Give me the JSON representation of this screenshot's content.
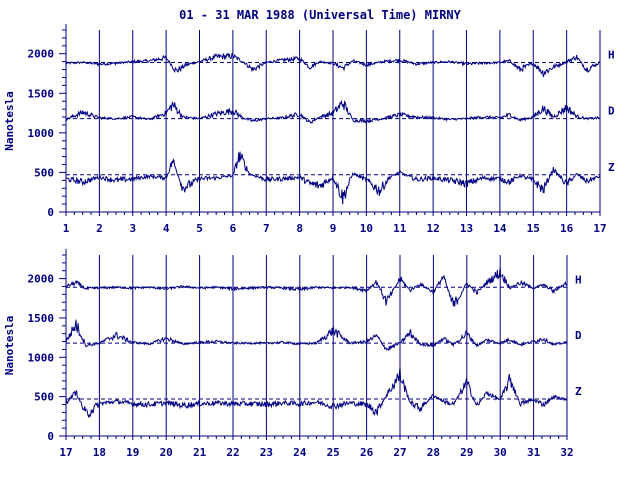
{
  "title": "01 - 31 MAR 1988 (Universal Time) MIRNY",
  "colors": {
    "ink": "#000080",
    "background": "#ffffff"
  },
  "chart_data": [
    {
      "type": "line",
      "panel": "top",
      "ylabel": "Nanotesla",
      "ylim": [
        0,
        2300
      ],
      "yticks": [
        0,
        500,
        1000,
        1500,
        2000
      ],
      "ytick_labels": [
        "0",
        "500",
        "1000",
        "1500",
        "2000"
      ],
      "xlim": [
        1,
        17
      ],
      "xticks": [
        1,
        2,
        3,
        4,
        5,
        6,
        7,
        8,
        9,
        10,
        11,
        12,
        13,
        14,
        15,
        16,
        17
      ],
      "xtick_labels": [
        "1",
        "2",
        "3",
        "4",
        "5",
        "6",
        "7",
        "8",
        "9",
        "10",
        "11",
        "12",
        "13",
        "14",
        "15",
        "16",
        "17"
      ],
      "grid": "vertical lines at each day",
      "series": [
        {
          "name": "H",
          "baseline": 1890,
          "x": [
            1,
            1.5,
            2,
            2.5,
            3,
            3.5,
            4,
            4.3,
            4.6,
            5,
            5.5,
            6,
            6.3,
            6.6,
            7,
            7.5,
            8,
            8.3,
            8.6,
            9,
            9.3,
            9.6,
            10,
            10.5,
            11,
            11.5,
            12,
            12.5,
            13,
            13.5,
            14,
            14.3,
            14.6,
            15,
            15.3,
            15.6,
            16,
            16.3,
            16.6,
            17
          ],
          "values": [
            1880,
            1890,
            1870,
            1880,
            1900,
            1910,
            1950,
            1780,
            1860,
            1900,
            1960,
            1970,
            1900,
            1800,
            1890,
            1920,
            1940,
            1830,
            1900,
            1880,
            1820,
            1910,
            1860,
            1900,
            1920,
            1870,
            1890,
            1900,
            1870,
            1880,
            1890,
            1910,
            1800,
            1880,
            1760,
            1830,
            1900,
            1960,
            1800,
            1890
          ]
        },
        {
          "name": "D",
          "baseline": 1180,
          "x": [
            1,
            1.5,
            2,
            2.5,
            3,
            3.5,
            4,
            4.2,
            4.5,
            5,
            5.5,
            6,
            6.3,
            6.6,
            7,
            7.5,
            8,
            8.3,
            8.6,
            9,
            9.3,
            9.6,
            10,
            10.5,
            11,
            11.5,
            12,
            12.5,
            13,
            13.5,
            14,
            14.3,
            14.6,
            15,
            15.3,
            15.6,
            16,
            16.3,
            16.6,
            17
          ],
          "values": [
            1170,
            1260,
            1190,
            1180,
            1200,
            1170,
            1250,
            1360,
            1200,
            1180,
            1240,
            1280,
            1190,
            1150,
            1180,
            1190,
            1240,
            1130,
            1200,
            1250,
            1380,
            1160,
            1150,
            1180,
            1230,
            1200,
            1190,
            1170,
            1180,
            1200,
            1190,
            1230,
            1160,
            1200,
            1310,
            1200,
            1320,
            1210,
            1180,
            1190
          ]
        },
        {
          "name": "Z",
          "baseline": 470,
          "x": [
            1,
            1.5,
            2,
            2.5,
            3,
            3.5,
            4,
            4.2,
            4.5,
            5,
            5.5,
            6,
            6.2,
            6.5,
            7,
            7.5,
            8,
            8.3,
            8.6,
            9,
            9.3,
            9.6,
            10,
            10.4,
            10.7,
            11,
            11.5,
            12,
            12.5,
            13,
            13.5,
            14,
            14.3,
            14.6,
            15,
            15.3,
            15.6,
            16,
            16.3,
            16.6,
            17
          ],
          "values": [
            420,
            380,
            440,
            400,
            420,
            450,
            430,
            650,
            300,
            420,
            430,
            460,
            720,
            480,
            410,
            420,
            440,
            360,
            330,
            440,
            180,
            490,
            400,
            270,
            440,
            500,
            410,
            430,
            400,
            360,
            430,
            420,
            380,
            460,
            400,
            280,
            540,
            350,
            480,
            390,
            450
          ]
        }
      ],
      "reference_lines": [
        1890,
        1180,
        470
      ]
    },
    {
      "type": "line",
      "panel": "bottom",
      "ylabel": "Nanotesla",
      "ylim": [
        0,
        2300
      ],
      "yticks": [
        0,
        500,
        1000,
        1500,
        2000
      ],
      "ytick_labels": [
        "0",
        "500",
        "1000",
        "1500",
        "2000"
      ],
      "xlim": [
        17,
        32
      ],
      "xticks": [
        17,
        18,
        19,
        20,
        21,
        22,
        23,
        24,
        25,
        26,
        27,
        28,
        29,
        30,
        31,
        32
      ],
      "xtick_labels": [
        "17",
        "18",
        "19",
        "20",
        "21",
        "22",
        "23",
        "24",
        "25",
        "26",
        "27",
        "28",
        "29",
        "30",
        "31",
        "32"
      ],
      "grid": "vertical lines at each day",
      "series": [
        {
          "name": "H",
          "baseline": 1890,
          "x": [
            17,
            17.3,
            17.6,
            18,
            18.5,
            19,
            19.5,
            20,
            20.5,
            21,
            21.5,
            22,
            22.5,
            23,
            23.5,
            24,
            24.5,
            25,
            25.5,
            26,
            26.3,
            26.6,
            27,
            27.3,
            27.6,
            28,
            28.3,
            28.6,
            29,
            29.3,
            29.6,
            30,
            30.3,
            30.6,
            31,
            31.3,
            31.6,
            32
          ],
          "values": [
            1900,
            1950,
            1870,
            1880,
            1890,
            1880,
            1890,
            1870,
            1900,
            1880,
            1890,
            1870,
            1880,
            1890,
            1880,
            1860,
            1890,
            1880,
            1890,
            1850,
            1960,
            1700,
            2000,
            1850,
            1930,
            1830,
            2030,
            1650,
            1940,
            1820,
            1950,
            2080,
            1880,
            1950,
            1880,
            1920,
            1840,
            1950
          ]
        },
        {
          "name": "D",
          "baseline": 1180,
          "x": [
            17,
            17.3,
            17.6,
            18,
            18.5,
            19,
            19.5,
            20,
            20.5,
            21,
            21.5,
            22,
            22.5,
            23,
            23.5,
            24,
            24.5,
            25,
            25.5,
            26,
            26.3,
            26.6,
            27,
            27.3,
            27.6,
            28,
            28.3,
            28.6,
            29,
            29.3,
            29.6,
            30,
            30.3,
            30.6,
            31,
            31.3,
            31.6,
            32
          ],
          "values": [
            1200,
            1420,
            1150,
            1180,
            1280,
            1190,
            1170,
            1240,
            1170,
            1190,
            1200,
            1180,
            1180,
            1180,
            1190,
            1170,
            1180,
            1340,
            1180,
            1200,
            1270,
            1100,
            1180,
            1310,
            1170,
            1150,
            1240,
            1160,
            1300,
            1150,
            1220,
            1180,
            1230,
            1160,
            1200,
            1240,
            1160,
            1190
          ]
        },
        {
          "name": "Z",
          "baseline": 470,
          "x": [
            17,
            17.3,
            17.6,
            18,
            18.5,
            19,
            19.5,
            20,
            20.5,
            21,
            21.5,
            22,
            22.5,
            23,
            23.5,
            24,
            24.5,
            25,
            25.5,
            26,
            26.3,
            26.6,
            27,
            27.3,
            27.6,
            28,
            28.3,
            28.6,
            29,
            29.3,
            29.6,
            30,
            30.3,
            30.6,
            31,
            31.3,
            31.6,
            32
          ],
          "values": [
            420,
            560,
            270,
            410,
            440,
            410,
            400,
            420,
            390,
            410,
            420,
            410,
            410,
            400,
            420,
            410,
            430,
            380,
            420,
            400,
            310,
            520,
            780,
            430,
            350,
            520,
            440,
            400,
            680,
            380,
            550,
            460,
            720,
            410,
            460,
            400,
            500,
            460
          ]
        }
      ],
      "reference_lines": [
        1890,
        1180,
        470
      ]
    }
  ]
}
